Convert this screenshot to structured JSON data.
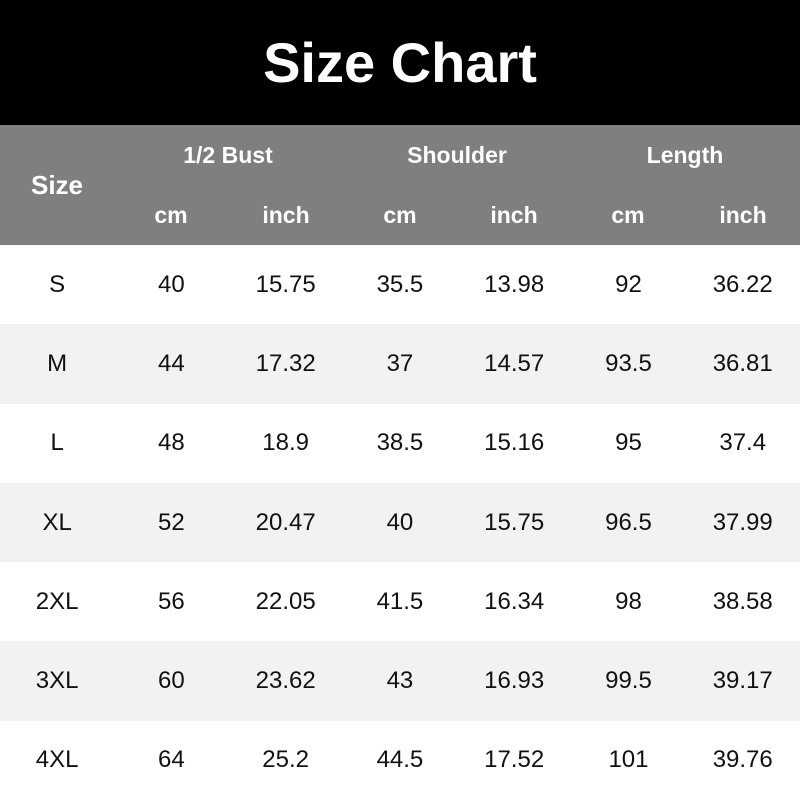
{
  "title": "Size Chart",
  "header": {
    "size": "Size",
    "groups": [
      "1/2 Bust",
      "Shoulder",
      "Length"
    ],
    "units": [
      "cm",
      "inch",
      "cm",
      "inch",
      "cm",
      "inch"
    ]
  },
  "rows": [
    [
      "S",
      "40",
      "15.75",
      "35.5",
      "13.98",
      "92",
      "36.22"
    ],
    [
      "M",
      "44",
      "17.32",
      "37",
      "14.57",
      "93.5",
      "36.81"
    ],
    [
      "L",
      "48",
      "18.9",
      "38.5",
      "15.16",
      "95",
      "37.4"
    ],
    [
      "XL",
      "52",
      "20.47",
      "40",
      "15.75",
      "96.5",
      "37.99"
    ],
    [
      "2XL",
      "56",
      "22.05",
      "41.5",
      "16.34",
      "98",
      "38.58"
    ],
    [
      "3XL",
      "60",
      "23.62",
      "43",
      "16.93",
      "99.5",
      "39.17"
    ],
    [
      "4XL",
      "64",
      "25.2",
      "44.5",
      "17.52",
      "101",
      "39.76"
    ]
  ]
}
